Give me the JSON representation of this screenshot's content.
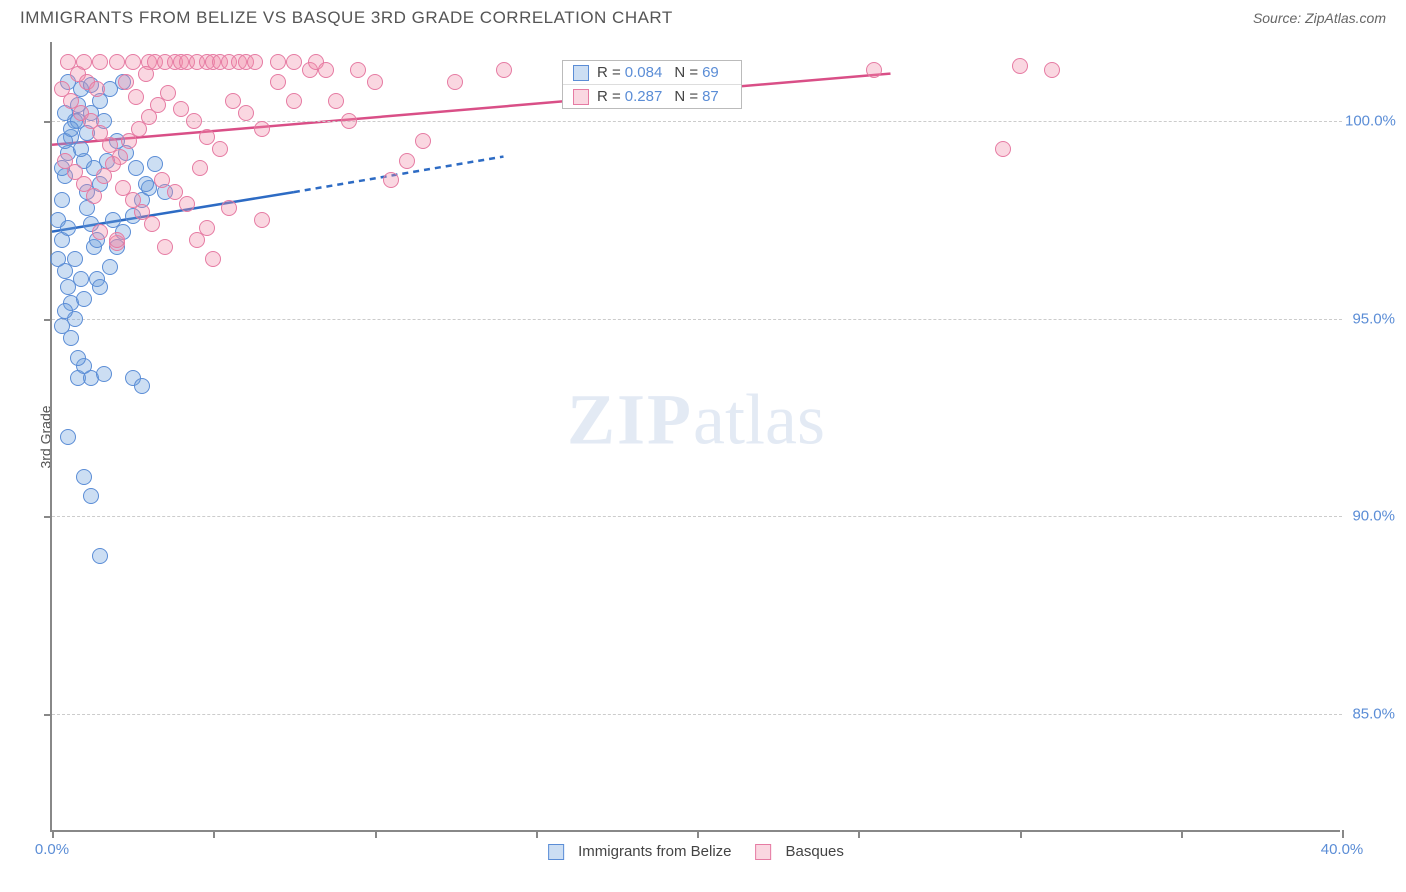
{
  "header": {
    "title": "IMMIGRANTS FROM BELIZE VS BASQUE 3RD GRADE CORRELATION CHART",
    "source_label": "Source: ",
    "source_value": "ZipAtlas.com"
  },
  "chart": {
    "type": "scatter",
    "y_axis_label": "3rd Grade",
    "xlim": [
      0,
      40
    ],
    "ylim": [
      82,
      102
    ],
    "x_ticks": [
      0,
      5,
      10,
      15,
      20,
      25,
      30,
      35,
      40
    ],
    "x_tick_labels": [
      "0.0%",
      "",
      "",
      "",
      "",
      "",
      "",
      "",
      "40.0%"
    ],
    "y_ticks": [
      85,
      90,
      95,
      100
    ],
    "y_tick_labels": [
      "85.0%",
      "90.0%",
      "95.0%",
      "100.0%"
    ],
    "grid_color": "#cccccc",
    "axis_color": "#888888",
    "background_color": "#ffffff",
    "tick_label_color": "#5b8dd6",
    "point_radius": 8,
    "series": [
      {
        "name": "Immigrants from Belize",
        "fill": "rgba(108,160,220,0.35)",
        "stroke": "#5b8dd6",
        "line_color": "#2d6bc4",
        "r_value": "0.084",
        "n_value": "69",
        "trend": {
          "x1": 0,
          "y1": 97.2,
          "x2": 7.5,
          "y2": 98.2,
          "solid_until_x": 7.5,
          "dash_to_x": 14,
          "dash_to_y": 99.1
        },
        "points": [
          [
            0.2,
            97.5
          ],
          [
            0.3,
            98.0
          ],
          [
            0.4,
            98.6
          ],
          [
            0.5,
            99.2
          ],
          [
            0.6,
            99.6
          ],
          [
            0.7,
            100.0
          ],
          [
            0.8,
            100.4
          ],
          [
            0.9,
            100.8
          ],
          [
            1.0,
            99.0
          ],
          [
            1.1,
            98.2
          ],
          [
            1.2,
            97.4
          ],
          [
            1.3,
            96.8
          ],
          [
            0.4,
            96.2
          ],
          [
            0.5,
            95.8
          ],
          [
            0.6,
            95.4
          ],
          [
            0.7,
            95.0
          ],
          [
            0.3,
            94.8
          ],
          [
            1.4,
            96.0
          ],
          [
            1.8,
            96.3
          ],
          [
            2.0,
            96.8
          ],
          [
            2.2,
            97.2
          ],
          [
            2.5,
            97.6
          ],
          [
            2.8,
            98.0
          ],
          [
            3.0,
            98.3
          ],
          [
            0.8,
            93.5
          ],
          [
            1.2,
            93.5
          ],
          [
            1.0,
            93.8
          ],
          [
            1.6,
            93.6
          ],
          [
            2.5,
            93.5
          ],
          [
            2.8,
            93.3
          ],
          [
            0.5,
            92.0
          ],
          [
            1.0,
            91.0
          ],
          [
            1.2,
            90.5
          ],
          [
            1.5,
            89.0
          ],
          [
            0.8,
            100.0
          ],
          [
            1.2,
            100.2
          ],
          [
            1.5,
            100.5
          ],
          [
            1.8,
            100.8
          ],
          [
            2.2,
            101.0
          ],
          [
            0.4,
            99.5
          ],
          [
            0.6,
            99.8
          ],
          [
            0.9,
            99.3
          ],
          [
            1.1,
            99.7
          ],
          [
            1.3,
            98.8
          ],
          [
            1.5,
            98.4
          ],
          [
            1.7,
            99.0
          ],
          [
            2.0,
            99.5
          ],
          [
            2.3,
            99.2
          ],
          [
            2.6,
            98.8
          ],
          [
            2.9,
            98.4
          ],
          [
            3.2,
            98.9
          ],
          [
            3.5,
            98.2
          ],
          [
            0.3,
            97.0
          ],
          [
            0.5,
            97.3
          ],
          [
            0.7,
            96.5
          ],
          [
            0.9,
            96.0
          ],
          [
            1.1,
            97.8
          ],
          [
            1.4,
            97.0
          ],
          [
            1.9,
            97.5
          ],
          [
            0.4,
            95.2
          ],
          [
            0.6,
            94.5
          ],
          [
            0.8,
            94.0
          ],
          [
            1.0,
            95.5
          ],
          [
            1.5,
            95.8
          ],
          [
            1.2,
            100.9
          ],
          [
            0.5,
            101.0
          ],
          [
            0.2,
            96.5
          ],
          [
            0.3,
            98.8
          ],
          [
            0.4,
            100.2
          ],
          [
            1.6,
            100.0
          ]
        ]
      },
      {
        "name": "Basques",
        "fill": "rgba(240,140,170,0.35)",
        "stroke": "#e67ba3",
        "line_color": "#d94f87",
        "r_value": "0.287",
        "n_value": "87",
        "trend": {
          "x1": 0,
          "y1": 99.4,
          "x2": 26,
          "y2": 101.2
        },
        "points": [
          [
            0.5,
            101.5
          ],
          [
            1.0,
            101.5
          ],
          [
            1.5,
            101.5
          ],
          [
            2.0,
            101.5
          ],
          [
            2.5,
            101.5
          ],
          [
            3.0,
            101.5
          ],
          [
            3.2,
            101.5
          ],
          [
            3.5,
            101.5
          ],
          [
            3.8,
            101.5
          ],
          [
            4.0,
            101.5
          ],
          [
            4.2,
            101.5
          ],
          [
            4.5,
            101.5
          ],
          [
            4.8,
            101.5
          ],
          [
            5.0,
            101.5
          ],
          [
            5.2,
            101.5
          ],
          [
            5.5,
            101.5
          ],
          [
            5.8,
            101.5
          ],
          [
            6.0,
            101.5
          ],
          [
            6.3,
            101.5
          ],
          [
            7.0,
            101.5
          ],
          [
            7.5,
            101.5
          ],
          [
            8.0,
            101.3
          ],
          [
            8.2,
            101.5
          ],
          [
            8.5,
            101.3
          ],
          [
            9.5,
            101.3
          ],
          [
            10.0,
            101.0
          ],
          [
            12.5,
            101.0
          ],
          [
            14.0,
            101.3
          ],
          [
            0.3,
            100.8
          ],
          [
            0.6,
            100.5
          ],
          [
            0.9,
            100.2
          ],
          [
            1.2,
            100.0
          ],
          [
            1.5,
            99.7
          ],
          [
            1.8,
            99.4
          ],
          [
            2.1,
            99.1
          ],
          [
            2.4,
            99.5
          ],
          [
            2.7,
            99.8
          ],
          [
            3.0,
            100.1
          ],
          [
            3.3,
            100.4
          ],
          [
            3.6,
            100.7
          ],
          [
            4.0,
            100.3
          ],
          [
            4.4,
            100.0
          ],
          [
            4.8,
            99.6
          ],
          [
            5.2,
            99.3
          ],
          [
            5.6,
            100.5
          ],
          [
            6.0,
            100.2
          ],
          [
            6.5,
            99.8
          ],
          [
            7.0,
            101.0
          ],
          [
            7.5,
            100.5
          ],
          [
            0.4,
            99.0
          ],
          [
            0.7,
            98.7
          ],
          [
            1.0,
            98.4
          ],
          [
            1.3,
            98.1
          ],
          [
            1.6,
            98.6
          ],
          [
            1.9,
            98.9
          ],
          [
            2.2,
            98.3
          ],
          [
            2.5,
            98.0
          ],
          [
            2.8,
            97.7
          ],
          [
            3.1,
            97.4
          ],
          [
            3.4,
            98.5
          ],
          [
            3.8,
            98.2
          ],
          [
            4.2,
            97.9
          ],
          [
            4.6,
            98.8
          ],
          [
            1.5,
            97.2
          ],
          [
            2.0,
            96.9
          ],
          [
            3.5,
            96.8
          ],
          [
            4.5,
            97.0
          ],
          [
            4.8,
            97.3
          ],
          [
            5.0,
            96.5
          ],
          [
            5.5,
            97.8
          ],
          [
            10.5,
            98.5
          ],
          [
            11.0,
            99.0
          ],
          [
            11.5,
            99.5
          ],
          [
            25.5,
            101.3
          ],
          [
            30.0,
            101.4
          ],
          [
            31.0,
            101.3
          ],
          [
            29.5,
            99.3
          ],
          [
            2.0,
            97.0
          ],
          [
            6.5,
            97.5
          ],
          [
            8.8,
            100.5
          ],
          [
            9.2,
            100.0
          ],
          [
            0.8,
            101.2
          ],
          [
            1.1,
            101.0
          ],
          [
            1.4,
            100.8
          ],
          [
            2.3,
            101.0
          ],
          [
            2.6,
            100.6
          ],
          [
            2.9,
            101.2
          ]
        ]
      }
    ],
    "watermark": {
      "text1": "ZIP",
      "text2": "atlas"
    },
    "legend_labels": {
      "r_prefix": "R = ",
      "n_prefix": "N = "
    },
    "bottom_legend": [
      {
        "label": "Immigrants from Belize",
        "fill": "rgba(108,160,220,0.35)",
        "stroke": "#5b8dd6"
      },
      {
        "label": "Basques",
        "fill": "rgba(240,140,170,0.35)",
        "stroke": "#e67ba3"
      }
    ]
  }
}
